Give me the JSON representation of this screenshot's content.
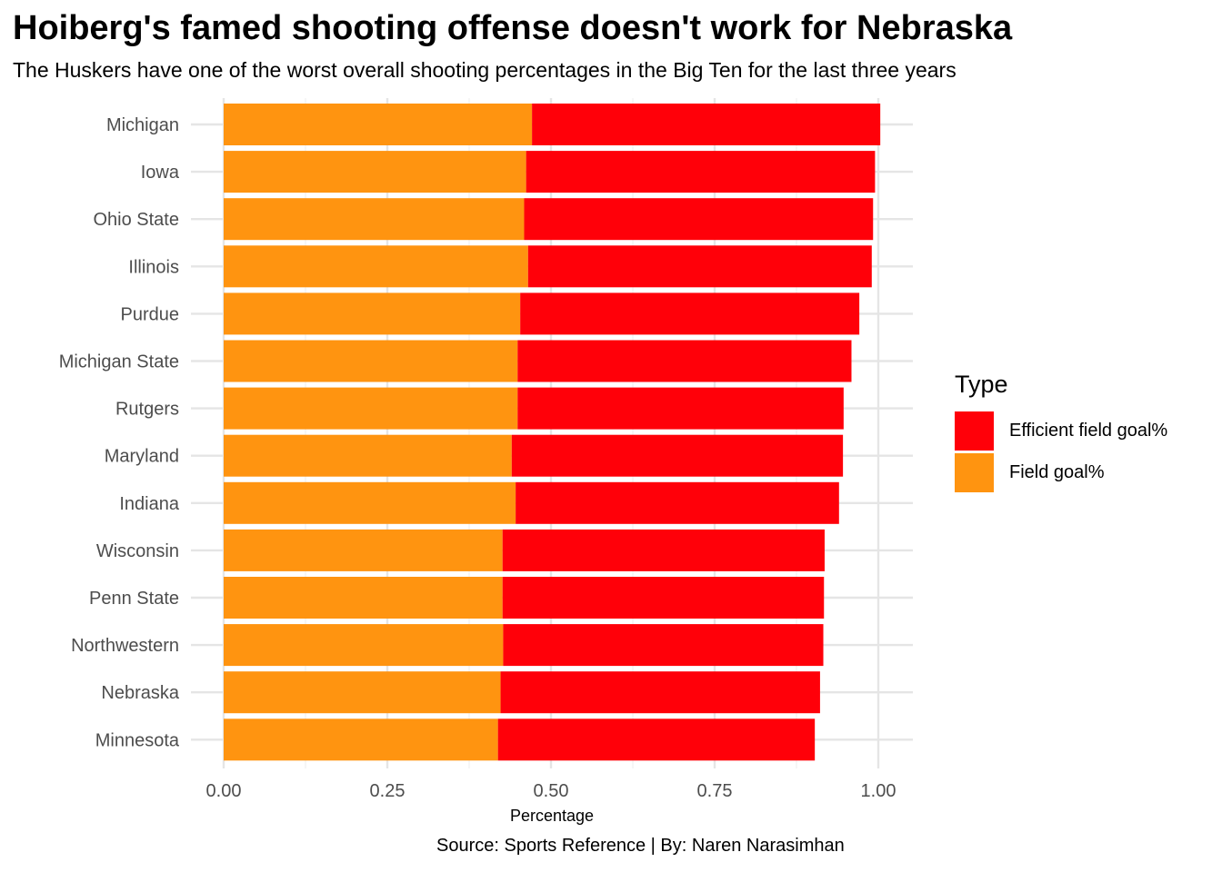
{
  "title": "Hoiberg's famed shooting offense doesn't work for Nebraska",
  "subtitle": "The Huskers have one of the worst overall shooting percentages in the Big Ten for the last three years",
  "caption": "Source: Sports Reference | By: Naren Narasimhan",
  "chart_data": {
    "type": "bar",
    "orientation": "horizontal",
    "stacked": true,
    "categories": [
      "Michigan",
      "Iowa",
      "Ohio State",
      "Illinois",
      "Purdue",
      "Michigan State",
      "Rutgers",
      "Maryland",
      "Indiana",
      "Wisconsin",
      "Penn State",
      "Northwestern",
      "Nebraska",
      "Minnesota"
    ],
    "series": [
      {
        "name": "Field goal%",
        "color": "#FF9410",
        "values": [
          0.471,
          0.462,
          0.459,
          0.465,
          0.453,
          0.449,
          0.449,
          0.44,
          0.446,
          0.426,
          0.426,
          0.427,
          0.423,
          0.419
        ]
      },
      {
        "name": "Efficient field goal%",
        "color": "#FF0009",
        "values": [
          0.532,
          0.533,
          0.533,
          0.525,
          0.518,
          0.51,
          0.498,
          0.506,
          0.494,
          0.492,
          0.491,
          0.489,
          0.488,
          0.484
        ]
      }
    ],
    "xlabel": "Percentage",
    "ylabel": "",
    "xlim": [
      0,
      1.05
    ],
    "xticks": [
      "0.00",
      "0.25",
      "0.50",
      "0.75",
      "1.00"
    ],
    "xtick_values": [
      0,
      0.25,
      0.5,
      0.75,
      1.0
    ],
    "grid": true,
    "legend": {
      "title": "Type",
      "placement": "right",
      "items": [
        {
          "label": "Efficient field goal%",
          "color": "#FF0009"
        },
        {
          "label": "Field goal%",
          "color": "#FF9410"
        }
      ]
    }
  }
}
